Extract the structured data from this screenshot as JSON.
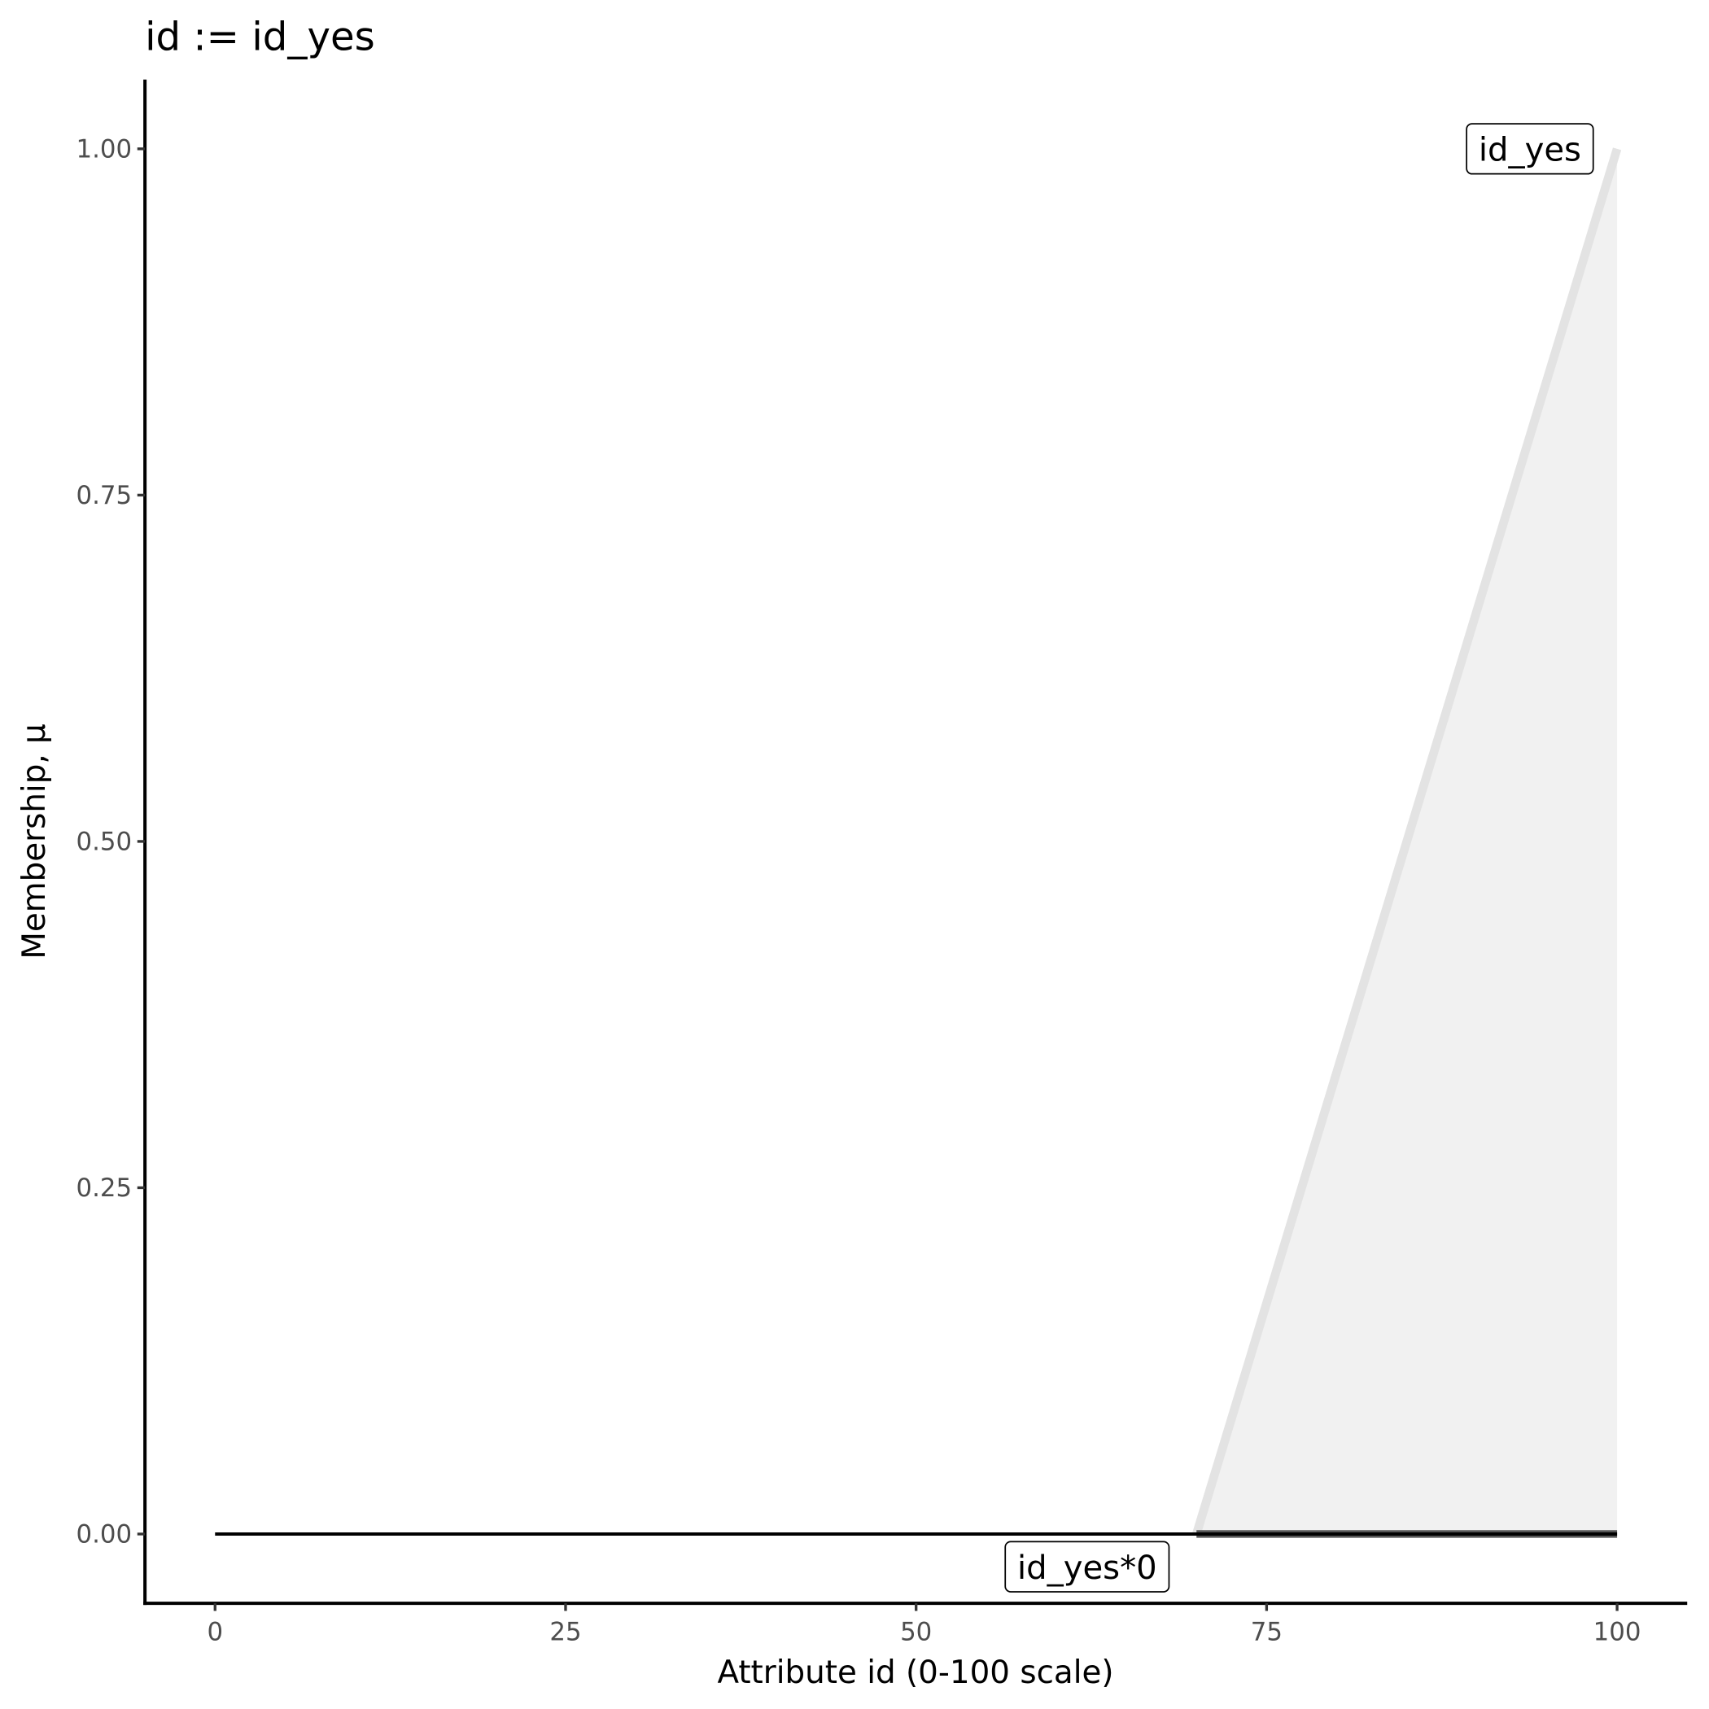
{
  "chart_data": {
    "type": "line",
    "title": "id := id_yes",
    "x_label": "Attribute id (0-100 scale)",
    "y_label": "Membership, μ",
    "series": [
      {
        "name": "id_yes",
        "color": "#e3e3e3",
        "fill": "#f1f1f1",
        "x": [
          70,
          100
        ],
        "values": [
          0,
          1
        ]
      },
      {
        "name": "id_yes*0",
        "color": "#000000",
        "x": [
          0,
          100
        ],
        "values": [
          0,
          0
        ]
      }
    ],
    "xlim": [
      -5,
      105
    ],
    "ylim": [
      -0.05,
      1.05
    ],
    "xticks": [
      0,
      25,
      50,
      75,
      100
    ],
    "yticks": [
      {
        "value": 0,
        "label": "0.00"
      },
      {
        "value": 0.25,
        "label": "0.25"
      },
      {
        "value": 0.5,
        "label": "0.50"
      },
      {
        "value": 0.75,
        "label": "0.75"
      },
      {
        "value": 1,
        "label": "1.00"
      }
    ],
    "grid": false
  }
}
